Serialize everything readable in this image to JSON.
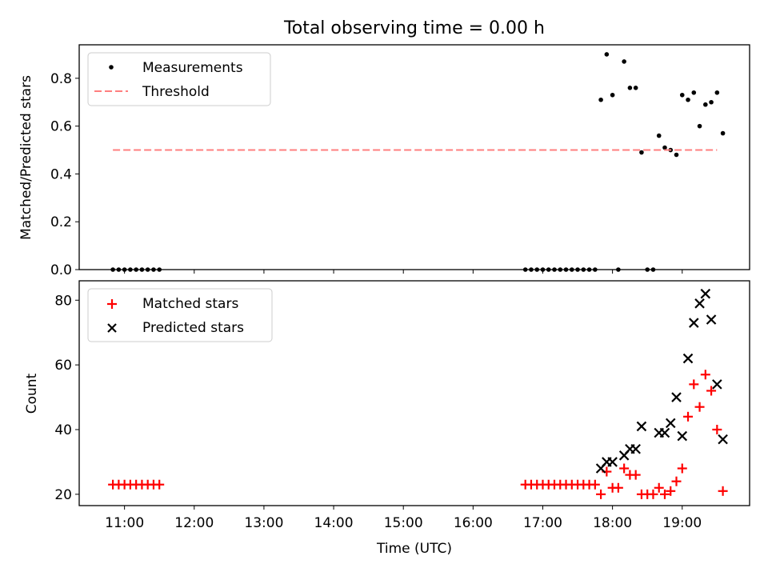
{
  "chart_data": [
    {
      "type": "scatter",
      "title": "Total observing time = 0.00 h",
      "xlabel": "",
      "ylabel": "Matched/Predicted stars",
      "ylim": [
        0,
        0.94
      ],
      "yticks": [
        "0.0",
        "0.2",
        "0.4",
        "0.6",
        "0.8"
      ],
      "legend": {
        "position": "upper-left",
        "entries": [
          "Measurements",
          "Threshold"
        ]
      },
      "series": [
        {
          "name": "Measurements",
          "color": "#000000",
          "marker": "dot",
          "x": [
            "10:50",
            "10:55",
            "11:00",
            "11:05",
            "11:10",
            "11:15",
            "11:20",
            "11:25",
            "11:30",
            "16:45",
            "16:50",
            "16:55",
            "17:00",
            "17:05",
            "17:10",
            "17:15",
            "17:20",
            "17:25",
            "17:30",
            "17:35",
            "17:40",
            "17:45",
            "17:50",
            "17:55",
            "18:00",
            "18:05",
            "18:10",
            "18:15",
            "18:20",
            "18:25",
            "18:30",
            "18:35",
            "18:40",
            "18:45",
            "18:50",
            "18:55",
            "19:00",
            "19:05",
            "19:10",
            "19:15",
            "19:20",
            "19:25",
            "19:30",
            "19:35"
          ],
          "y": [
            0,
            0,
            0,
            0,
            0,
            0,
            0,
            0,
            0,
            0,
            0,
            0,
            0,
            0,
            0,
            0,
            0,
            0,
            0,
            0,
            0,
            0,
            0.71,
            0.9,
            0.73,
            0,
            0.87,
            0.76,
            0.76,
            0.49,
            0,
            0,
            0.56,
            0.51,
            0.5,
            0.48,
            0.73,
            0.71,
            0.74,
            0.6,
            0.69,
            0.7,
            0.74,
            0.57
          ]
        },
        {
          "name": "Threshold",
          "color": "#ff7f7f",
          "style": "dashed",
          "x": [
            "10:50",
            "19:30"
          ],
          "y": [
            0.5,
            0.5
          ]
        }
      ]
    },
    {
      "type": "scatter",
      "title": "",
      "xlabel": "Time (UTC)",
      "ylabel": "Count",
      "ylim": [
        16.5,
        86
      ],
      "yticks": [
        "20",
        "40",
        "60",
        "80"
      ],
      "legend": {
        "position": "upper-left",
        "entries": [
          "Matched stars",
          "Predicted stars"
        ]
      },
      "series": [
        {
          "name": "Matched stars",
          "color": "#ff0000",
          "marker": "plus",
          "x": [
            "10:50",
            "10:55",
            "11:00",
            "11:05",
            "11:10",
            "11:15",
            "11:20",
            "11:25",
            "11:30",
            "16:45",
            "16:50",
            "16:55",
            "17:00",
            "17:05",
            "17:10",
            "17:15",
            "17:20",
            "17:25",
            "17:30",
            "17:35",
            "17:40",
            "17:45",
            "17:50",
            "17:55",
            "18:00",
            "18:05",
            "18:10",
            "18:15",
            "18:20",
            "18:25",
            "18:30",
            "18:35",
            "18:40",
            "18:45",
            "18:50",
            "18:55",
            "19:00",
            "19:05",
            "19:10",
            "19:15",
            "19:20",
            "19:25",
            "19:30",
            "19:35"
          ],
          "y": [
            23,
            23,
            23,
            23,
            23,
            23,
            23,
            23,
            23,
            23,
            23,
            23,
            23,
            23,
            23,
            23,
            23,
            23,
            23,
            23,
            23,
            23,
            20,
            27,
            22,
            22,
            28,
            26,
            26,
            20,
            20,
            20,
            22,
            20,
            21,
            24,
            28,
            44,
            54,
            47,
            57,
            52,
            40,
            21
          ]
        },
        {
          "name": "Predicted stars",
          "color": "#000000",
          "marker": "x",
          "x": [
            "17:50",
            "17:55",
            "18:00",
            "18:10",
            "18:15",
            "18:20",
            "18:25",
            "18:40",
            "18:45",
            "18:50",
            "18:55",
            "19:00",
            "19:05",
            "19:10",
            "19:15",
            "19:20",
            "19:25",
            "19:30",
            "19:35"
          ],
          "y": [
            28,
            30,
            30,
            32,
            34,
            34,
            41,
            39,
            39,
            42,
            50,
            38,
            62,
            73,
            79,
            82,
            74,
            54,
            37
          ]
        }
      ]
    }
  ],
  "x_axis": {
    "min": "10:21",
    "max": "19:58",
    "ticks": [
      "11:00",
      "12:00",
      "13:00",
      "14:00",
      "15:00",
      "16:00",
      "17:00",
      "18:00",
      "19:00"
    ]
  }
}
